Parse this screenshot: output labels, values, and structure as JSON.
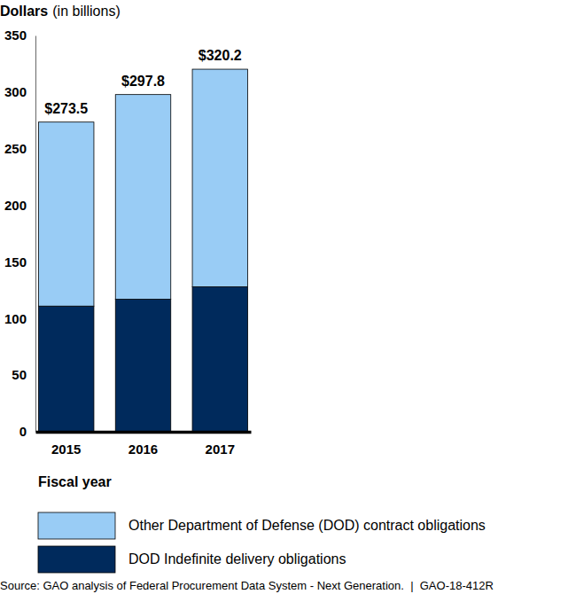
{
  "chart_data": {
    "type": "bar",
    "stacked": true,
    "y_label": "Dollars",
    "y_sublabel": "(in billions)",
    "x_label": "Fiscal year",
    "categories": [
      "2015",
      "2016",
      "2017"
    ],
    "series": [
      {
        "name": "DOD Indefinite delivery obligations",
        "color": "#002a5c",
        "values": [
          111,
          117,
          128
        ]
      },
      {
        "name": "Other Department of Defense (DOD) contract obligations",
        "color": "#99ccf5",
        "values": [
          162.5,
          180.8,
          192.2
        ]
      }
    ],
    "totals": [
      273.5,
      297.8,
      320.2
    ],
    "total_labels": [
      "$273.5",
      "$297.8",
      "$320.2"
    ],
    "ylim": [
      0,
      350
    ],
    "yticks": [
      0,
      50,
      100,
      150,
      200,
      250,
      300,
      350
    ],
    "grid": false,
    "legend": "bottom",
    "source": "Source: GAO analysis of Federal Procurement Data System - Next Generation.  |  GAO-18-412R"
  }
}
